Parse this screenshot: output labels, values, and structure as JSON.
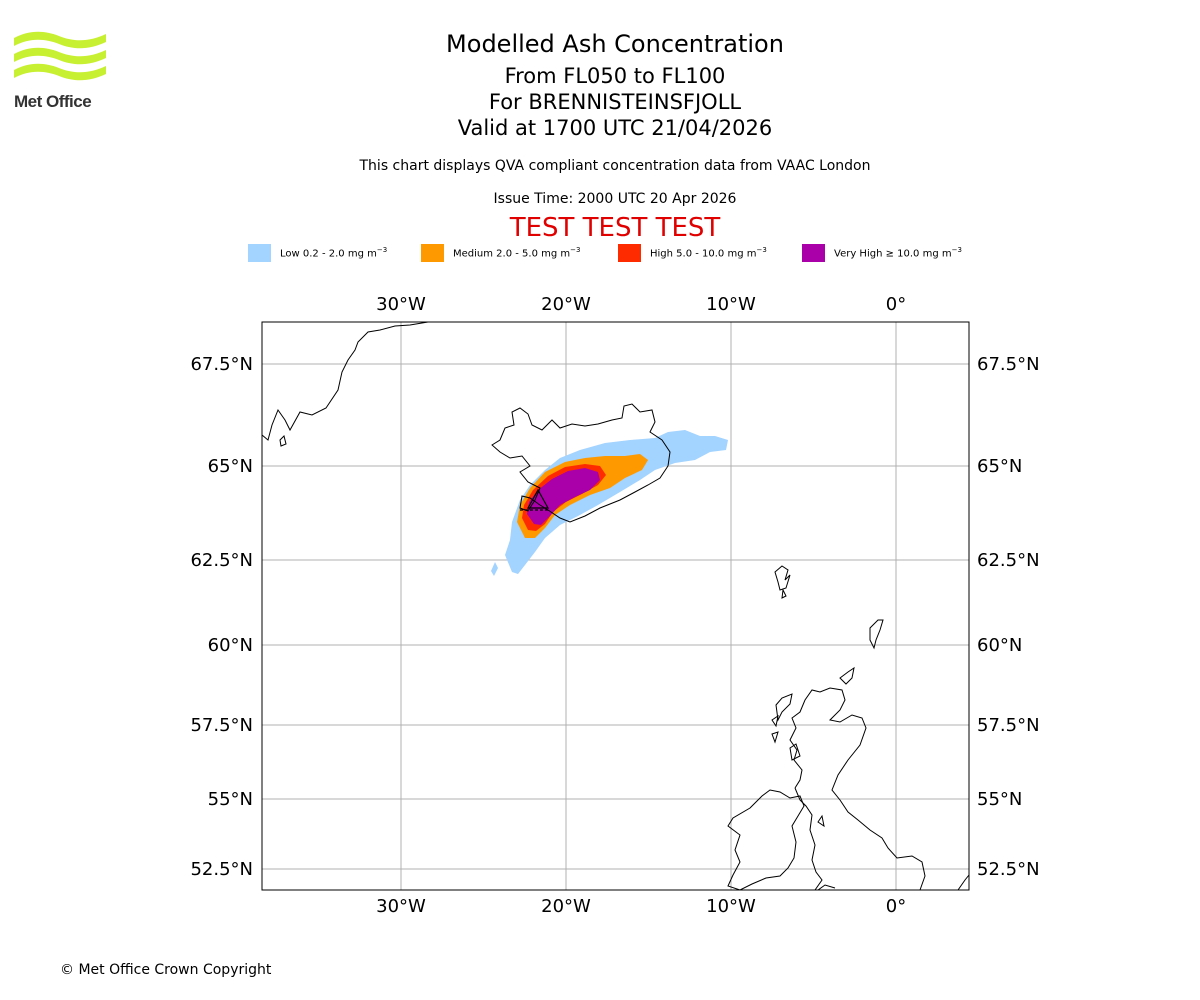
{
  "logo": {
    "text": "Met Office",
    "colors": {
      "waves": "#c8f032",
      "text": "#333333"
    }
  },
  "header": {
    "title": "Modelled Ash Concentration",
    "flight_levels": "From FL050 to FL100",
    "volcano": "For BRENNISTEINSFJOLL",
    "valid_time": "Valid at 1700 UTC 21/04/2026",
    "description": "This chart displays QVA compliant concentration data from VAAC London",
    "issue_time": "Issue Time: 2000 UTC 20 Apr 2026",
    "test_banner": "TEST TEST TEST"
  },
  "legend": [
    {
      "label": "Low 0.2 - 2.0 mg m",
      "unit_sup": "−3",
      "color": "#a3d3ff"
    },
    {
      "label": "Medium 2.0 - 5.0 mg m",
      "unit_sup": "−3",
      "color": "#ff9900"
    },
    {
      "label": "High 5.0 - 10.0 mg m",
      "unit_sup": "−3",
      "color": "#ff2b00"
    },
    {
      "label": "Very High  ≥  10.0 mg m",
      "unit_sup": "−3",
      "color": "#aa00aa"
    }
  ],
  "map": {
    "longitude_ticks": [
      "30°W",
      "20°W",
      "10°W",
      "0°"
    ],
    "latitude_ticks": [
      "67.5°N",
      "65°N",
      "62.5°N",
      "60°N",
      "57.5°N",
      "55°N",
      "52.5°N"
    ],
    "extent": {
      "lon_min": -38.4,
      "lon_max": 4.4,
      "lat_min": 51.9,
      "lat_max": 68.6
    },
    "volcano_marker": "triangle",
    "ash_layers": [
      "low",
      "medium",
      "high",
      "very-high"
    ]
  },
  "footer": {
    "copyright": "© Met Office Crown Copyright"
  }
}
